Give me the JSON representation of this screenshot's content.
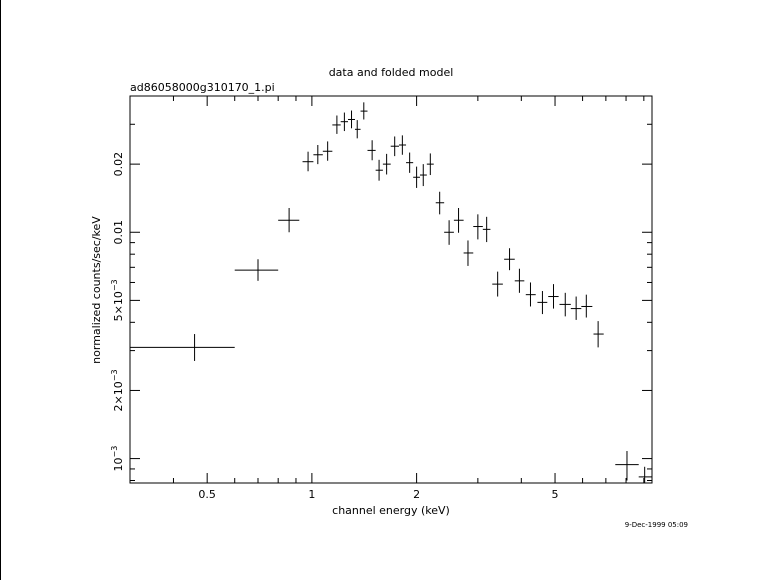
{
  "chart_data": {
    "type": "scatter",
    "title": "data and folded model",
    "subtitle": "ad86058000g310170_1.pi",
    "xlabel": "channel energy (keV)",
    "ylabel": "normalized counts/sec/keV",
    "x_scale": "log",
    "y_scale": "log",
    "xlim": [
      0.3,
      9.5
    ],
    "ylim": [
      0.00078,
      0.04
    ],
    "x_ticks": [
      {
        "value": 0.5,
        "label": "0.5"
      },
      {
        "value": 1,
        "label": "1"
      },
      {
        "value": 2,
        "label": "2"
      },
      {
        "value": 5,
        "label": "5"
      }
    ],
    "y_ticks": [
      {
        "value": 0.001,
        "label": "10",
        "sup": "−3"
      },
      {
        "value": 0.002,
        "label": "2×10",
        "sup": "−3"
      },
      {
        "value": 0.005,
        "label": "5×10",
        "sup": "−3"
      },
      {
        "value": 0.01,
        "label": "0.01",
        "sup": ""
      },
      {
        "value": 0.02,
        "label": "0.02",
        "sup": ""
      }
    ],
    "grid": false,
    "series": [
      {
        "points": [
          {
            "x": 0.46,
            "xlo": 0.3,
            "xhi": 0.6,
            "y": 0.0031,
            "ylo": 0.0027,
            "yhi": 0.00355
          },
          {
            "x": 0.7,
            "xlo": 0.6,
            "xhi": 0.8,
            "y": 0.0068,
            "ylo": 0.0061,
            "yhi": 0.0076
          },
          {
            "x": 0.86,
            "xlo": 0.8,
            "xhi": 0.92,
            "y": 0.0113,
            "ylo": 0.01,
            "yhi": 0.0128
          },
          {
            "x": 0.975,
            "xlo": 0.94,
            "xhi": 1.01,
            "y": 0.0205,
            "ylo": 0.0186,
            "yhi": 0.0227
          },
          {
            "x": 1.04,
            "xlo": 1.01,
            "xhi": 1.075,
            "y": 0.022,
            "ylo": 0.02,
            "yhi": 0.0243
          },
          {
            "x": 1.11,
            "xlo": 1.075,
            "xhi": 1.145,
            "y": 0.0228,
            "ylo": 0.0207,
            "yhi": 0.0252
          },
          {
            "x": 1.18,
            "xlo": 1.145,
            "xhi": 1.21,
            "y": 0.0298,
            "ylo": 0.0272,
            "yhi": 0.0328
          },
          {
            "x": 1.24,
            "xlo": 1.21,
            "xhi": 1.27,
            "y": 0.0308,
            "ylo": 0.028,
            "yhi": 0.0338
          },
          {
            "x": 1.3,
            "xlo": 1.27,
            "xhi": 1.33,
            "y": 0.0315,
            "ylo": 0.0288,
            "yhi": 0.0345
          },
          {
            "x": 1.35,
            "xlo": 1.33,
            "xhi": 1.38,
            "y": 0.0285,
            "ylo": 0.026,
            "yhi": 0.0313
          },
          {
            "x": 1.41,
            "xlo": 1.38,
            "xhi": 1.445,
            "y": 0.0343,
            "ylo": 0.0315,
            "yhi": 0.0375
          },
          {
            "x": 1.49,
            "xlo": 1.445,
            "xhi": 1.525,
            "y": 0.023,
            "ylo": 0.0208,
            "yhi": 0.0255
          },
          {
            "x": 1.56,
            "xlo": 1.525,
            "xhi": 1.6,
            "y": 0.0188,
            "ylo": 0.0169,
            "yhi": 0.0209
          },
          {
            "x": 1.64,
            "xlo": 1.6,
            "xhi": 1.685,
            "y": 0.02,
            "ylo": 0.018,
            "yhi": 0.0222
          },
          {
            "x": 1.73,
            "xlo": 1.685,
            "xhi": 1.78,
            "y": 0.024,
            "ylo": 0.0217,
            "yhi": 0.0265
          },
          {
            "x": 1.82,
            "xlo": 1.78,
            "xhi": 1.865,
            "y": 0.0243,
            "ylo": 0.022,
            "yhi": 0.0268
          },
          {
            "x": 1.91,
            "xlo": 1.865,
            "xhi": 1.955,
            "y": 0.0203,
            "ylo": 0.0183,
            "yhi": 0.0225
          },
          {
            "x": 2.0,
            "xlo": 1.955,
            "xhi": 2.045,
            "y": 0.0175,
            "ylo": 0.0157,
            "yhi": 0.0195
          },
          {
            "x": 2.09,
            "xlo": 2.045,
            "xhi": 2.14,
            "y": 0.0179,
            "ylo": 0.016,
            "yhi": 0.02
          },
          {
            "x": 2.19,
            "xlo": 2.14,
            "xhi": 2.24,
            "y": 0.02,
            "ylo": 0.0179,
            "yhi": 0.0223
          },
          {
            "x": 2.33,
            "xlo": 2.27,
            "xhi": 2.4,
            "y": 0.0135,
            "ylo": 0.012,
            "yhi": 0.0151
          },
          {
            "x": 2.48,
            "xlo": 2.4,
            "xhi": 2.56,
            "y": 0.01,
            "ylo": 0.0088,
            "yhi": 0.0113
          },
          {
            "x": 2.64,
            "xlo": 2.56,
            "xhi": 2.73,
            "y": 0.0113,
            "ylo": 0.00995,
            "yhi": 0.0128
          },
          {
            "x": 2.81,
            "xlo": 2.73,
            "xhi": 2.91,
            "y": 0.0081,
            "ylo": 0.0071,
            "yhi": 0.0092
          },
          {
            "x": 3.0,
            "xlo": 2.91,
            "xhi": 3.1,
            "y": 0.0106,
            "ylo": 0.0093,
            "yhi": 0.012
          },
          {
            "x": 3.18,
            "xlo": 3.1,
            "xhi": 3.26,
            "y": 0.0103,
            "ylo": 0.00905,
            "yhi": 0.0117
          },
          {
            "x": 3.42,
            "xlo": 3.3,
            "xhi": 3.54,
            "y": 0.0059,
            "ylo": 0.0052,
            "yhi": 0.0067
          },
          {
            "x": 3.7,
            "xlo": 3.57,
            "xhi": 3.83,
            "y": 0.0076,
            "ylo": 0.0068,
            "yhi": 0.0085
          },
          {
            "x": 3.95,
            "xlo": 3.83,
            "xhi": 4.08,
            "y": 0.0061,
            "ylo": 0.0054,
            "yhi": 0.0069
          },
          {
            "x": 4.25,
            "xlo": 4.12,
            "xhi": 4.4,
            "y": 0.0053,
            "ylo": 0.0047,
            "yhi": 0.006
          },
          {
            "x": 4.6,
            "xlo": 4.45,
            "xhi": 4.75,
            "y": 0.0049,
            "ylo": 0.00435,
            "yhi": 0.0055
          },
          {
            "x": 4.95,
            "xlo": 4.78,
            "xhi": 5.12,
            "y": 0.0052,
            "ylo": 0.0046,
            "yhi": 0.0059
          },
          {
            "x": 5.35,
            "xlo": 5.15,
            "xhi": 5.55,
            "y": 0.0048,
            "ylo": 0.00425,
            "yhi": 0.0054
          },
          {
            "x": 5.75,
            "xlo": 5.55,
            "xhi": 5.95,
            "y": 0.0046,
            "ylo": 0.0041,
            "yhi": 0.0052
          },
          {
            "x": 6.15,
            "xlo": 5.95,
            "xhi": 6.4,
            "y": 0.0047,
            "ylo": 0.0042,
            "yhi": 0.0053
          },
          {
            "x": 6.65,
            "xlo": 6.45,
            "xhi": 6.9,
            "y": 0.00355,
            "ylo": 0.0031,
            "yhi": 0.00405
          },
          {
            "x": 8.05,
            "xlo": 7.45,
            "xhi": 8.7,
            "y": 0.00094,
            "ylo": 0.0008,
            "yhi": 0.00108
          },
          {
            "x": 9.05,
            "xlo": 8.7,
            "xhi": 9.5,
            "y": 0.00083,
            "ylo": 0.00078,
            "yhi": 0.00092
          }
        ]
      }
    ]
  },
  "timestamp": "9-Dec-1999 05:09"
}
